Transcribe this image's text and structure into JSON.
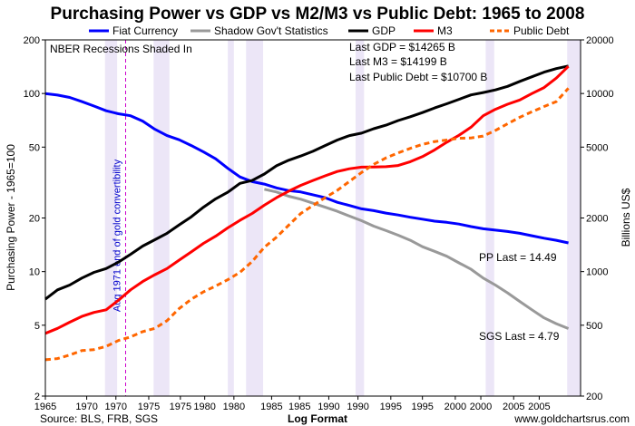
{
  "chart_data": {
    "type": "line",
    "title": "Purchasing Power vs GDP vs M2/M3 vs Public Debt: 1965 to 2008",
    "xlabel": "Log Format",
    "ylabel_left": "Purchasing Power - 1965=100",
    "ylabel_right": "Billions US$",
    "x_ticks": [
      "1965",
      "1970",
      "1970",
      "1975",
      "1975",
      "1980",
      "1980",
      "1985",
      "1985",
      "1990",
      "1990",
      "1995",
      "1995",
      "2000",
      "2000",
      "2005",
      "2005"
    ],
    "left_axis": {
      "scale": "log",
      "range": [
        2,
        200
      ],
      "ticks": [
        "200",
        "100",
        "50",
        "20",
        "10",
        "5",
        "2"
      ]
    },
    "right_axis": {
      "scale": "log",
      "range": [
        200,
        20000
      ],
      "ticks": [
        "20000",
        "10000",
        "5000",
        "2000",
        "1000",
        "500",
        "200"
      ]
    },
    "legend": [
      {
        "name": "Fiat Currency",
        "color": "#0000ff",
        "style": "solid"
      },
      {
        "name": "Shadow Gov't Statistics",
        "color": "#999999",
        "style": "solid"
      },
      {
        "name": "GDP",
        "color": "#000000",
        "style": "solid"
      },
      {
        "name": "M3",
        "color": "#ff0000",
        "style": "solid"
      },
      {
        "name": "Public Debt",
        "color": "#ff6600",
        "style": "dashed"
      }
    ],
    "recessions": [
      {
        "start": 1969.9,
        "end": 1970.9
      },
      {
        "start": 1973.9,
        "end": 1975.2
      },
      {
        "start": 1980.0,
        "end": 1980.5
      },
      {
        "start": 1981.5,
        "end": 1982.9
      },
      {
        "start": 1990.5,
        "end": 1991.2
      },
      {
        "start": 2001.2,
        "end": 2001.9
      },
      {
        "start": 2007.9,
        "end": 2009.0
      }
    ],
    "gold_event": {
      "year": 1971.6,
      "label": "Aug 1971 end of gold convertibility"
    },
    "series": [
      {
        "name": "Fiat Currency",
        "axis": "left",
        "color": "#0000ff",
        "points": [
          [
            1965,
            100
          ],
          [
            1966,
            98
          ],
          [
            1967,
            95
          ],
          [
            1968,
            90
          ],
          [
            1969,
            85
          ],
          [
            1970,
            80
          ],
          [
            1971,
            77
          ],
          [
            1972,
            75
          ],
          [
            1973,
            70
          ],
          [
            1974,
            63
          ],
          [
            1975,
            58
          ],
          [
            1976,
            55
          ],
          [
            1977,
            51
          ],
          [
            1978,
            47
          ],
          [
            1979,
            43
          ],
          [
            1980,
            38
          ],
          [
            1981,
            34
          ],
          [
            1982,
            32
          ],
          [
            1983,
            31
          ],
          [
            1984,
            29.5
          ],
          [
            1985,
            28.5
          ],
          [
            1986,
            28
          ],
          [
            1987,
            27
          ],
          [
            1988,
            26
          ],
          [
            1989,
            24.5
          ],
          [
            1990,
            23.5
          ],
          [
            1991,
            22.5
          ],
          [
            1992,
            22
          ],
          [
            1993,
            21.3
          ],
          [
            1994,
            20.8
          ],
          [
            1995,
            20.2
          ],
          [
            1996,
            19.7
          ],
          [
            1997,
            19.2
          ],
          [
            1998,
            18.9
          ],
          [
            1999,
            18.5
          ],
          [
            2000,
            17.9
          ],
          [
            2001,
            17.4
          ],
          [
            2002,
            17.1
          ],
          [
            2003,
            16.8
          ],
          [
            2004,
            16.4
          ],
          [
            2005,
            15.9
          ],
          [
            2006,
            15.4
          ],
          [
            2007,
            15
          ],
          [
            2008,
            14.49
          ]
        ]
      },
      {
        "name": "Shadow Gov't Statistics",
        "axis": "left",
        "color": "#999999",
        "points": [
          [
            1983,
            29
          ],
          [
            1984,
            28
          ],
          [
            1985,
            26.5
          ],
          [
            1986,
            25.5
          ],
          [
            1987,
            24.2
          ],
          [
            1988,
            23
          ],
          [
            1989,
            21.8
          ],
          [
            1990,
            20.5
          ],
          [
            1991,
            19.3
          ],
          [
            1992,
            18
          ],
          [
            1993,
            17
          ],
          [
            1994,
            16
          ],
          [
            1995,
            15
          ],
          [
            1996,
            13.8
          ],
          [
            1997,
            13
          ],
          [
            1998,
            12.2
          ],
          [
            1999,
            11.2
          ],
          [
            2000,
            10.3
          ],
          [
            2001,
            9.2
          ],
          [
            2002,
            8.4
          ],
          [
            2003,
            7.6
          ],
          [
            2004,
            6.8
          ],
          [
            2005,
            6.1
          ],
          [
            2006,
            5.5
          ],
          [
            2007,
            5.1
          ],
          [
            2008,
            4.79
          ]
        ]
      },
      {
        "name": "GDP",
        "axis": "right",
        "color": "#000000",
        "points": [
          [
            1965,
            700
          ],
          [
            1966,
            790
          ],
          [
            1967,
            840
          ],
          [
            1968,
            920
          ],
          [
            1969,
            990
          ],
          [
            1970,
            1040
          ],
          [
            1971,
            1130
          ],
          [
            1972,
            1250
          ],
          [
            1973,
            1390
          ],
          [
            1974,
            1510
          ],
          [
            1975,
            1640
          ],
          [
            1976,
            1830
          ],
          [
            1977,
            2030
          ],
          [
            1978,
            2300
          ],
          [
            1979,
            2560
          ],
          [
            1980,
            2790
          ],
          [
            1981,
            3130
          ],
          [
            1982,
            3250
          ],
          [
            1983,
            3530
          ],
          [
            1984,
            3930
          ],
          [
            1985,
            4220
          ],
          [
            1986,
            4460
          ],
          [
            1987,
            4740
          ],
          [
            1988,
            5100
          ],
          [
            1989,
            5480
          ],
          [
            1990,
            5800
          ],
          [
            1991,
            5990
          ],
          [
            1992,
            6340
          ],
          [
            1993,
            6640
          ],
          [
            1994,
            7050
          ],
          [
            1995,
            7400
          ],
          [
            1996,
            7810
          ],
          [
            1997,
            8300
          ],
          [
            1998,
            8750
          ],
          [
            1999,
            9270
          ],
          [
            2000,
            9820
          ],
          [
            2001,
            10130
          ],
          [
            2002,
            10470
          ],
          [
            2003,
            10960
          ],
          [
            2004,
            11690
          ],
          [
            2005,
            12420
          ],
          [
            2006,
            13180
          ],
          [
            2007,
            13800
          ],
          [
            2008,
            14265
          ]
        ]
      },
      {
        "name": "M3",
        "axis": "right",
        "color": "#ff0000",
        "points": [
          [
            1965,
            450
          ],
          [
            1966,
            480
          ],
          [
            1967,
            520
          ],
          [
            1968,
            560
          ],
          [
            1969,
            590
          ],
          [
            1970,
            610
          ],
          [
            1971,
            690
          ],
          [
            1972,
            790
          ],
          [
            1973,
            880
          ],
          [
            1974,
            960
          ],
          [
            1975,
            1040
          ],
          [
            1976,
            1160
          ],
          [
            1977,
            1290
          ],
          [
            1978,
            1440
          ],
          [
            1979,
            1580
          ],
          [
            1980,
            1760
          ],
          [
            1981,
            1940
          ],
          [
            1982,
            2120
          ],
          [
            1983,
            2360
          ],
          [
            1984,
            2600
          ],
          [
            1985,
            2830
          ],
          [
            1986,
            3050
          ],
          [
            1987,
            3250
          ],
          [
            1988,
            3450
          ],
          [
            1989,
            3650
          ],
          [
            1990,
            3780
          ],
          [
            1991,
            3860
          ],
          [
            1992,
            3870
          ],
          [
            1993,
            3880
          ],
          [
            1994,
            3940
          ],
          [
            1995,
            4140
          ],
          [
            1996,
            4420
          ],
          [
            1997,
            4820
          ],
          [
            1998,
            5330
          ],
          [
            1999,
            5820
          ],
          [
            2000,
            6470
          ],
          [
            2001,
            7500
          ],
          [
            2002,
            8150
          ],
          [
            2003,
            8700
          ],
          [
            2004,
            9200
          ],
          [
            2005,
            10000
          ],
          [
            2006,
            10800
          ],
          [
            2007,
            12200
          ],
          [
            2008,
            14199
          ]
        ]
      },
      {
        "name": "Public Debt",
        "axis": "right",
        "color": "#ff6600",
        "points": [
          [
            1965,
            320
          ],
          [
            1966,
            325
          ],
          [
            1967,
            340
          ],
          [
            1968,
            360
          ],
          [
            1969,
            365
          ],
          [
            1970,
            380
          ],
          [
            1971,
            410
          ],
          [
            1972,
            430
          ],
          [
            1973,
            460
          ],
          [
            1974,
            480
          ],
          [
            1975,
            530
          ],
          [
            1976,
            620
          ],
          [
            1977,
            700
          ],
          [
            1978,
            770
          ],
          [
            1979,
            830
          ],
          [
            1980,
            900
          ],
          [
            1981,
            990
          ],
          [
            1982,
            1140
          ],
          [
            1983,
            1370
          ],
          [
            1984,
            1560
          ],
          [
            1985,
            1820
          ],
          [
            1986,
            2120
          ],
          [
            1987,
            2350
          ],
          [
            1988,
            2600
          ],
          [
            1989,
            2860
          ],
          [
            1990,
            3210
          ],
          [
            1991,
            3600
          ],
          [
            1992,
            4000
          ],
          [
            1993,
            4350
          ],
          [
            1994,
            4640
          ],
          [
            1995,
            4920
          ],
          [
            1996,
            5180
          ],
          [
            1997,
            5370
          ],
          [
            1998,
            5480
          ],
          [
            1999,
            5610
          ],
          [
            2000,
            5630
          ],
          [
            2001,
            5770
          ],
          [
            2002,
            6200
          ],
          [
            2003,
            6760
          ],
          [
            2004,
            7350
          ],
          [
            2005,
            7900
          ],
          [
            2006,
            8450
          ],
          [
            2007,
            9000
          ],
          [
            2008,
            10700
          ]
        ]
      }
    ]
  },
  "legend": {
    "fiat": "Fiat Currency",
    "shadow": "Shadow Gov't Statistics",
    "gdp": "GDP",
    "m3": "M3",
    "debt": "Public Debt"
  },
  "annotations": {
    "nber": "NBER Recessions Shaded In",
    "last_gdp": "Last GDP = $14265 B",
    "last_m3": "Last M3 = $14199 B",
    "last_debt": "Last Public Debt = $10700 B",
    "pp_last": "PP Last = 14.49",
    "sgs_last": "SGS Last = 4.79",
    "gold": "Aug 1971 end of gold convertibility"
  },
  "footer": {
    "source": "Source: BLS, FRB, SGS",
    "xlabel": "Log Format",
    "site": "www.goldchartsrus.com"
  },
  "colors": {
    "fiat": "#0000ff",
    "shadow": "#999999",
    "gdp": "#000000",
    "m3": "#ff0000",
    "debt": "#ff6600",
    "recession": "#ece6f7"
  }
}
